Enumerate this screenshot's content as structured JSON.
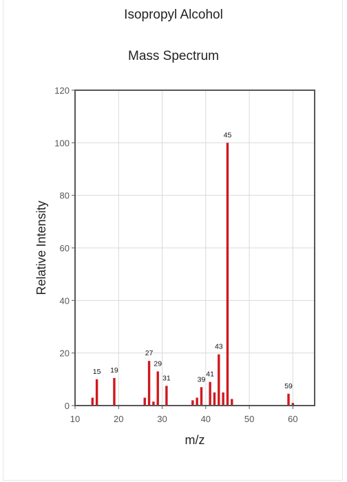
{
  "chart_data": {
    "type": "bar",
    "title": "Isopropyl Alcohol",
    "subtitle": "Mass Spectrum",
    "xlabel": "m/z",
    "ylabel": "Relative Intensity",
    "xlim": [
      10,
      65
    ],
    "ylim": [
      0,
      120
    ],
    "xticks": [
      10,
      20,
      30,
      40,
      50,
      60
    ],
    "yticks": [
      0,
      20,
      40,
      60,
      80,
      100,
      120
    ],
    "grid": true,
    "bar_color": "#d0181f",
    "series": [
      {
        "x": [
          14,
          15,
          19,
          26,
          27,
          28,
          29,
          31,
          37,
          38,
          39,
          41,
          42,
          43,
          44,
          45,
          46,
          59,
          60
        ],
        "values": [
          3,
          10,
          10.5,
          3,
          17,
          1.5,
          13,
          7.5,
          2,
          3,
          7,
          9,
          5,
          19.5,
          5,
          100,
          2.5,
          4.5,
          1
        ]
      }
    ],
    "annotations": [
      {
        "x": 15,
        "y": 10,
        "text": "15"
      },
      {
        "x": 19,
        "y": 10.5,
        "text": "19"
      },
      {
        "x": 27,
        "y": 17,
        "text": "27"
      },
      {
        "x": 29,
        "y": 13,
        "text": "29"
      },
      {
        "x": 31,
        "y": 7.5,
        "text": "31"
      },
      {
        "x": 39,
        "y": 7,
        "text": "39"
      },
      {
        "x": 41,
        "y": 9,
        "text": "41"
      },
      {
        "x": 43,
        "y": 19.5,
        "text": "43"
      },
      {
        "x": 45,
        "y": 100,
        "text": "45"
      },
      {
        "x": 59,
        "y": 4.5,
        "text": "59"
      }
    ]
  }
}
